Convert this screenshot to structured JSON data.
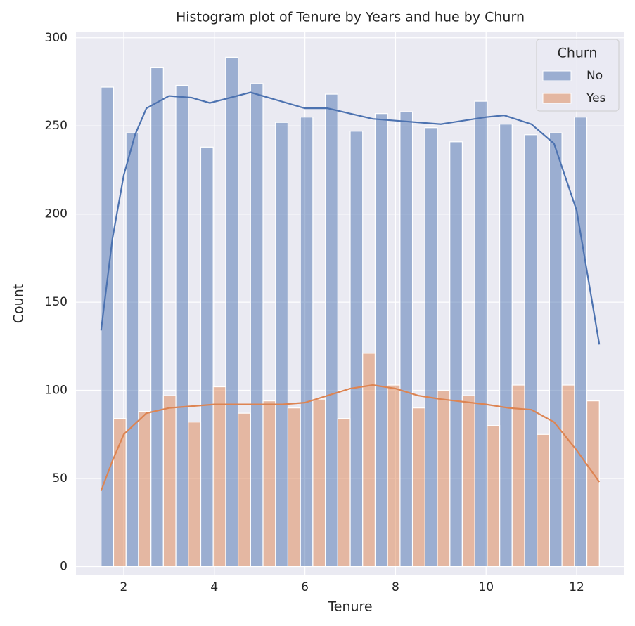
{
  "chart_data": {
    "type": "histogram",
    "title": "Histogram plot of Tenure by Years and hue by Churn",
    "x_label": "Tenure",
    "y_label": "Count",
    "legend_title": "Churn",
    "legend": "upper right",
    "grid": true,
    "bins": [
      1.5,
      2.05,
      2.6,
      3.15,
      3.7,
      4.25,
      4.8,
      5.35,
      5.9,
      6.45,
      7,
      7.55,
      8.1,
      8.65,
      9.2,
      9.75,
      10.3,
      10.85,
      11.4,
      11.95,
      12.5
    ],
    "series": [
      {
        "name": "No",
        "color": "#4c72b0",
        "values": [
          272,
          246,
          283,
          273,
          238,
          289,
          274,
          252,
          255,
          268,
          247,
          257,
          258,
          249,
          241,
          264,
          251,
          245,
          246,
          255
        ],
        "kde": {
          "x": [
            1.5,
            1.75,
            2,
            2.25,
            2.5,
            3,
            3.5,
            3.9,
            4.8,
            6,
            6.5,
            7,
            7.5,
            8,
            9,
            10,
            10.4,
            11,
            11.5,
            12,
            12.5
          ],
          "values": [
            134,
            186,
            222,
            245,
            260,
            267,
            266,
            263,
            269,
            260,
            260,
            257,
            254,
            253,
            251,
            255,
            256,
            251,
            240,
            202,
            126
          ]
        }
      },
      {
        "name": "Yes",
        "color": "#dd8452",
        "values": [
          84,
          88,
          97,
          82,
          102,
          87,
          94,
          90,
          95,
          84,
          121,
          103,
          90,
          100,
          97,
          80,
          103,
          75,
          103,
          94
        ],
        "kde": {
          "x": [
            1.5,
            1.75,
            2,
            2.5,
            3,
            4,
            5,
            5.5,
            6,
            6.5,
            7,
            7.5,
            8,
            8.5,
            9,
            10,
            10.5,
            11,
            11.5,
            12,
            12.5
          ],
          "values": [
            43,
            60,
            75,
            87,
            90,
            92,
            92,
            92,
            93,
            97,
            101,
            103,
            101,
            97,
            95,
            92,
            90,
            89,
            82,
            66,
            48
          ]
        }
      }
    ],
    "xlim": [
      0.945,
      13.055
    ],
    "xticks": [
      2,
      4,
      6,
      8,
      10,
      12
    ],
    "ylim": [
      -5,
      303.5
    ],
    "yticks": [
      0,
      50,
      100,
      150,
      200,
      250,
      300
    ]
  }
}
